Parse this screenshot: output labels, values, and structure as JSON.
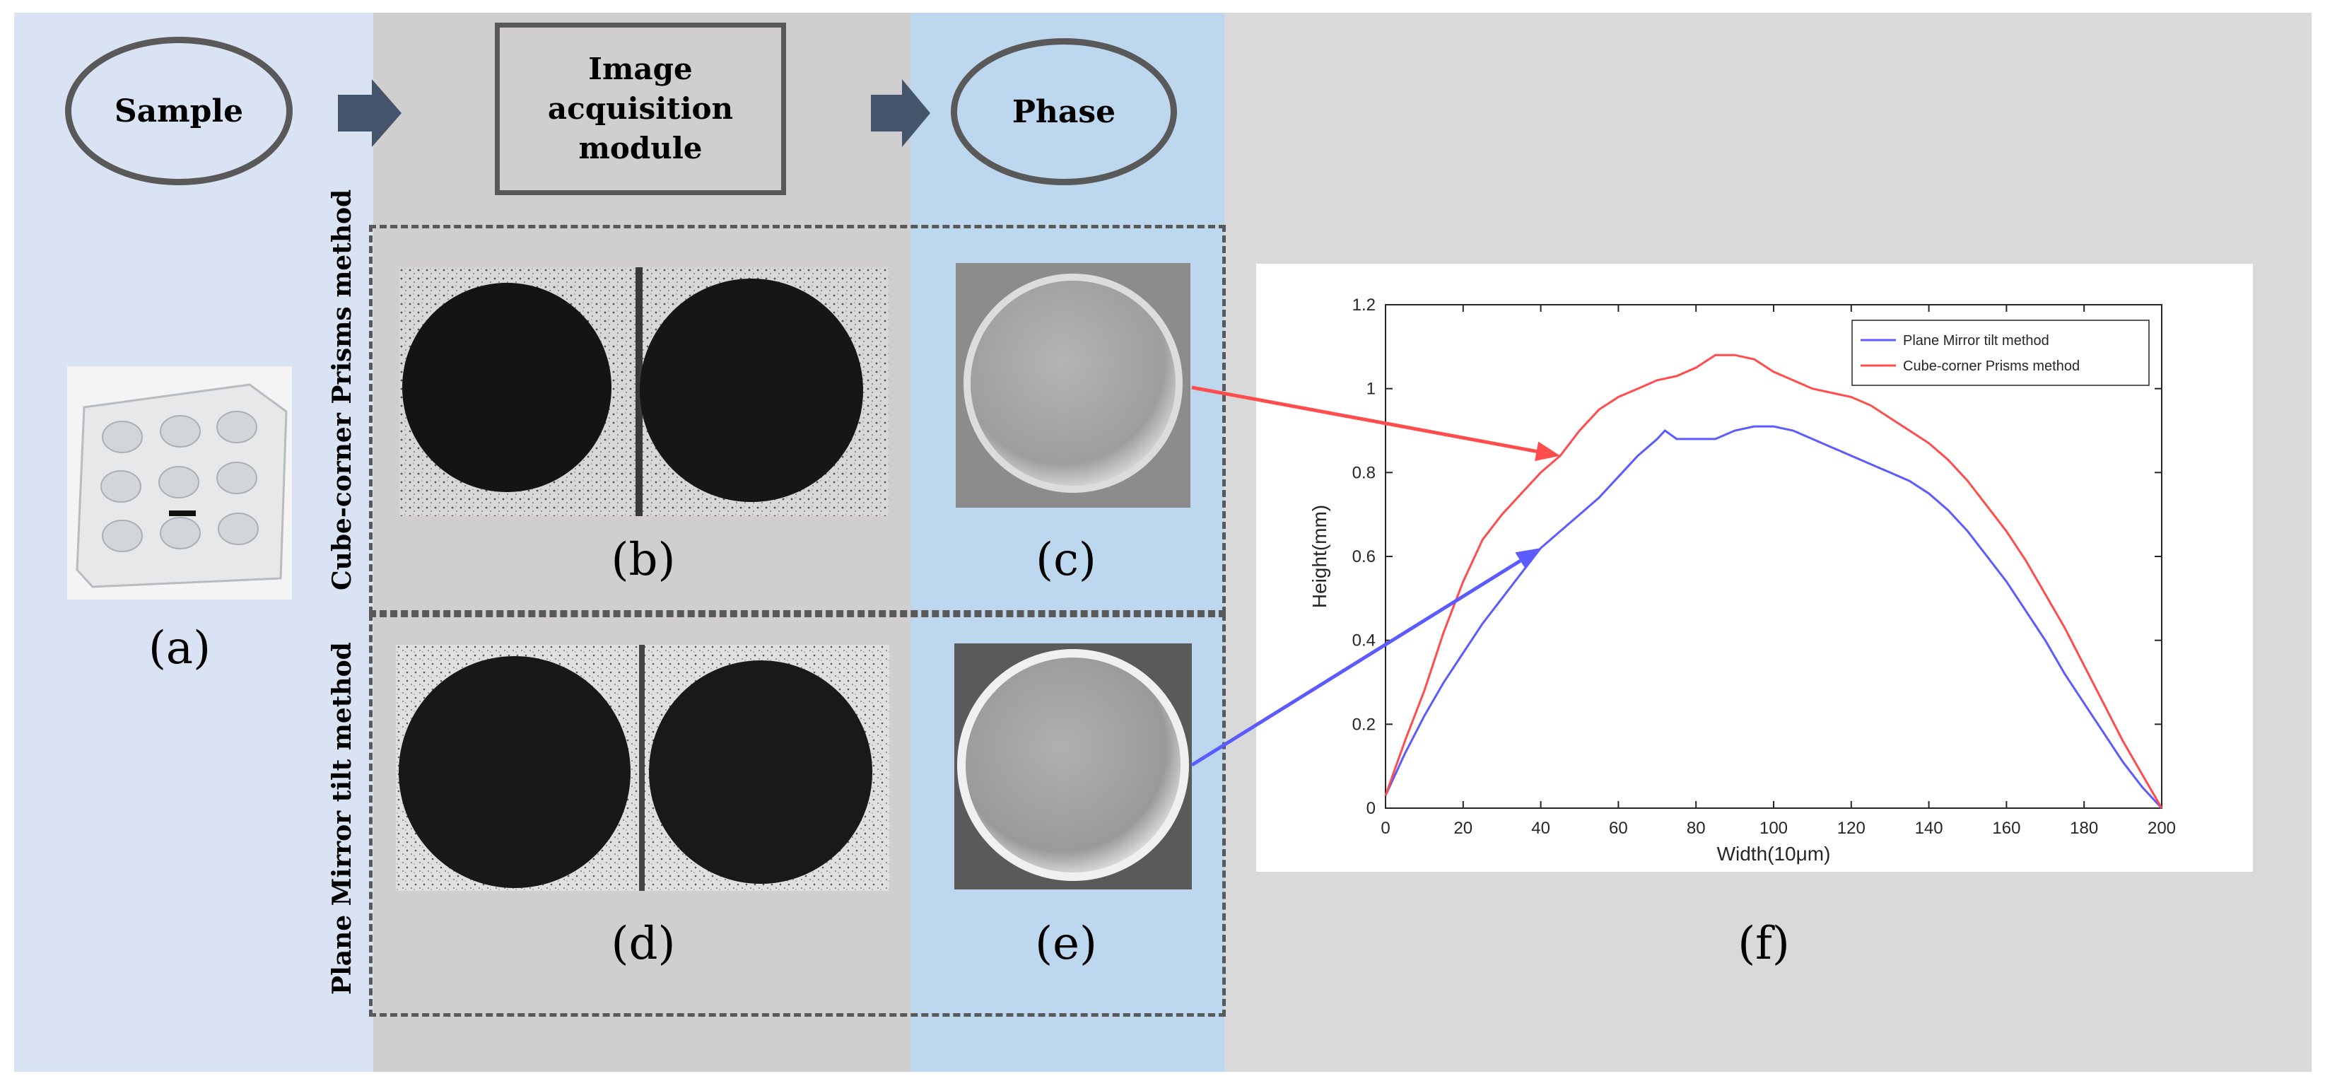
{
  "flow": {
    "sample_label": "Sample",
    "acquisition_label_line1": "Image acquisition",
    "acquisition_label_line2": "module",
    "phase_label": "Phase"
  },
  "rows": {
    "top_method": "Cube-corner Prisms method",
    "bottom_method": "Plane Mirror tilt method"
  },
  "captions": {
    "a": "(a)",
    "b": "(b)",
    "c": "(c)",
    "d": "(d)",
    "e": "(e)",
    "f": "(f)"
  },
  "colors": {
    "sample_column": "#dae3f3",
    "acquisition_column": "#d0cece",
    "phase_column": "#bdd7ee",
    "background": "#d9d9d9",
    "cube_corner_series": "#ff4d4d",
    "plane_mirror_series": "#5b5bff"
  },
  "chart_data": {
    "type": "line",
    "xlabel": "Width(10μm)",
    "ylabel": "Height(mm)",
    "xlim": [
      0,
      200
    ],
    "ylim": [
      0,
      1.2
    ],
    "xticks": [
      0,
      20,
      40,
      60,
      80,
      100,
      120,
      140,
      160,
      180,
      200
    ],
    "yticks": [
      0,
      0.2,
      0.4,
      0.6,
      0.8,
      1,
      1.2
    ],
    "xtick_labels": [
      "0",
      "20",
      "40",
      "60",
      "80",
      "100",
      "120",
      "140",
      "160",
      "180",
      "200"
    ],
    "ytick_labels": [
      "0",
      "0.2",
      "0.4",
      "0.6",
      "0.8",
      "1",
      "1.2"
    ],
    "legend_position": "top-right",
    "series": [
      {
        "name": "Plane Mirror tilt method",
        "color": "#5b5bff",
        "x": [
          0,
          5,
          10,
          15,
          20,
          25,
          30,
          35,
          40,
          45,
          50,
          55,
          60,
          65,
          70,
          72,
          75,
          80,
          85,
          90,
          95,
          100,
          105,
          110,
          115,
          120,
          125,
          130,
          135,
          140,
          145,
          150,
          155,
          160,
          165,
          170,
          175,
          180,
          185,
          190,
          195,
          200
        ],
        "y": [
          0.03,
          0.13,
          0.22,
          0.3,
          0.37,
          0.44,
          0.5,
          0.56,
          0.62,
          0.66,
          0.7,
          0.74,
          0.79,
          0.84,
          0.88,
          0.9,
          0.88,
          0.88,
          0.88,
          0.9,
          0.91,
          0.91,
          0.9,
          0.88,
          0.86,
          0.84,
          0.82,
          0.8,
          0.78,
          0.75,
          0.71,
          0.66,
          0.6,
          0.54,
          0.47,
          0.4,
          0.32,
          0.25,
          0.18,
          0.11,
          0.05,
          0.0
        ]
      },
      {
        "name": "Cube-corner Prisms method",
        "color": "#ff4d4d",
        "x": [
          0,
          5,
          10,
          15,
          20,
          25,
          30,
          35,
          40,
          45,
          50,
          55,
          60,
          65,
          70,
          75,
          80,
          85,
          90,
          95,
          100,
          105,
          110,
          115,
          120,
          125,
          130,
          135,
          140,
          145,
          150,
          155,
          160,
          165,
          170,
          175,
          180,
          185,
          190,
          195,
          200
        ],
        "y": [
          0.03,
          0.16,
          0.28,
          0.42,
          0.54,
          0.64,
          0.7,
          0.75,
          0.8,
          0.84,
          0.9,
          0.95,
          0.98,
          1.0,
          1.02,
          1.03,
          1.05,
          1.08,
          1.08,
          1.07,
          1.04,
          1.02,
          1.0,
          0.99,
          0.98,
          0.96,
          0.93,
          0.9,
          0.87,
          0.83,
          0.78,
          0.72,
          0.66,
          0.59,
          0.51,
          0.43,
          0.34,
          0.25,
          0.16,
          0.08,
          0.0
        ]
      }
    ]
  }
}
